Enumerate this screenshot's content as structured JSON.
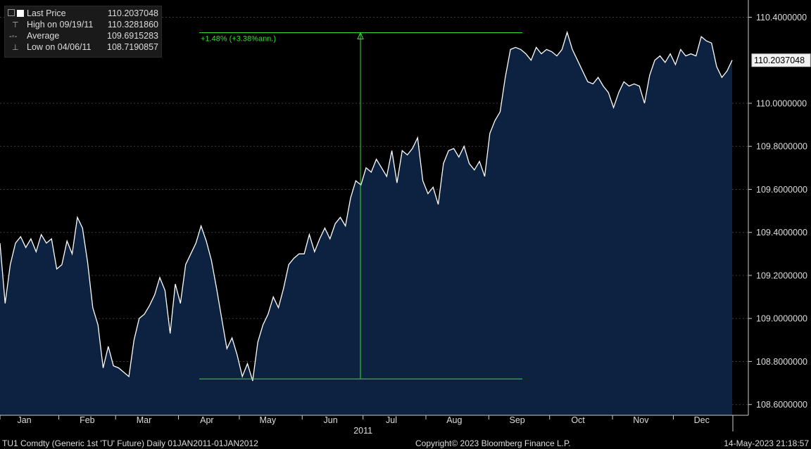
{
  "legend": {
    "rows": [
      {
        "icon": "last-price-icon",
        "label": "Last Price",
        "value": "110.2037048"
      },
      {
        "icon": "high-marker-icon",
        "label": "High on 09/19/11",
        "value": "110.3281860"
      },
      {
        "icon": "average-marker-icon",
        "label": "Average",
        "value": "109.6915283"
      },
      {
        "icon": "low-marker-icon",
        "label": "Low on 04/06/11",
        "value": "108.7190857"
      }
    ]
  },
  "footer": {
    "security": "TU1 Comdty (Generic 1st 'TU' Future)  Daily 01JAN2011-01JAN2012",
    "copyright": "Copyright© 2023 Bloomberg Finance L.P.",
    "timestamp": "14-May-2023 21:18:57"
  },
  "colors": {
    "background": "#000000",
    "area": "#0c2240",
    "line": "#ffffff",
    "annotation": "#33dd33",
    "grid": "#3a3a3a",
    "axis": "#cccccc"
  },
  "chart_data": {
    "type": "area",
    "x_start": "2011-01-03",
    "x_end": "2011-12-30",
    "year_label": "2011",
    "month_labels": [
      "Jan",
      "Feb",
      "Mar",
      "Apr",
      "May",
      "Jun",
      "Jul",
      "Aug",
      "Sep",
      "Oct",
      "Nov",
      "Dec"
    ],
    "y_ticks": [
      "110.4000000",
      "110.0000000",
      "109.8000000",
      "109.6000000",
      "109.4000000",
      "109.2000000",
      "109.0000000",
      "108.8000000",
      "108.6000000"
    ],
    "ylim": [
      108.55,
      110.48
    ],
    "grid": true,
    "last_price_label": "110.2037048",
    "series": [
      {
        "values": [
          109.35,
          109.07,
          109.25,
          109.35,
          109.38,
          109.33,
          109.37,
          109.31,
          109.39,
          109.35,
          109.37,
          109.23,
          109.25,
          109.36,
          109.3,
          109.47,
          109.42,
          109.26,
          109.05,
          108.97,
          108.77,
          108.87,
          108.78,
          108.77,
          108.75,
          108.73,
          108.9,
          109.0,
          109.02,
          109.06,
          109.11,
          109.19,
          109.13,
          108.93,
          109.16,
          109.07,
          109.25,
          109.3,
          109.35,
          109.43,
          109.36,
          109.27,
          109.14,
          109.0,
          108.86,
          108.91,
          108.83,
          108.73,
          108.79,
          108.71,
          108.89,
          108.97,
          109.02,
          109.1,
          109.05,
          109.14,
          109.25,
          109.28,
          109.3,
          109.3,
          109.39,
          109.31,
          109.37,
          109.42,
          109.37,
          109.44,
          109.47,
          109.43,
          109.56,
          109.64,
          109.62,
          109.7,
          109.68,
          109.74,
          109.7,
          109.66,
          109.78,
          109.63,
          109.78,
          109.76,
          109.79,
          109.84,
          109.64,
          109.58,
          109.61,
          109.53,
          109.72,
          109.78,
          109.79,
          109.75,
          109.8,
          109.72,
          109.69,
          109.73,
          109.66,
          109.86,
          109.92,
          109.96,
          110.12,
          110.25,
          110.26,
          110.25,
          110.23,
          110.2,
          110.26,
          110.23,
          110.25,
          110.24,
          110.22,
          110.25,
          110.33,
          110.25,
          110.2,
          110.15,
          110.1,
          110.09,
          110.12,
          110.08,
          110.05,
          109.98,
          110.05,
          110.1,
          110.08,
          110.09,
          110.08,
          110.0,
          110.13,
          110.2,
          110.22,
          110.19,
          110.23,
          110.18,
          110.25,
          110.22,
          110.23,
          110.22,
          110.31,
          110.29,
          110.28,
          110.17,
          110.12,
          110.15,
          110.2
        ]
      }
    ],
    "annotation": {
      "text": "+1.48% (+3.38%ann.)",
      "high": 110.328186,
      "low": 108.7190857
    }
  }
}
